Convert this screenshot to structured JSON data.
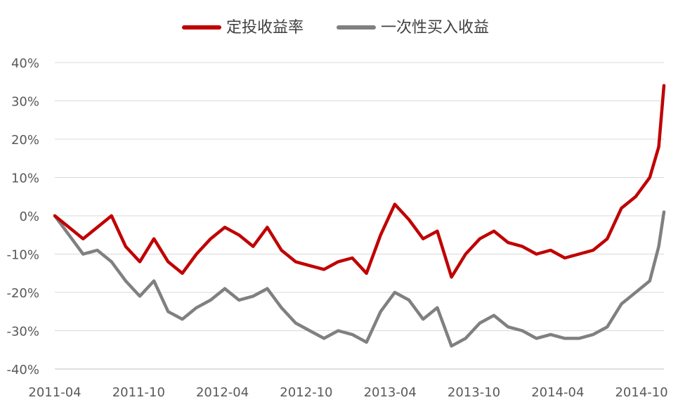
{
  "chart_data": {
    "type": "line",
    "title": "",
    "xlabel": "",
    "ylabel": "",
    "ylim": [
      -40,
      40
    ],
    "yticks": [
      -40,
      -30,
      -20,
      -10,
      0,
      10,
      20,
      30,
      40
    ],
    "ytick_labels": [
      "-40%",
      "-30%",
      "-20%",
      "-10%",
      "0%",
      "10%",
      "20%",
      "30%",
      "40%"
    ],
    "xtick_labels": [
      "2011-04",
      "2011-10",
      "2012-04",
      "2012-10",
      "2013-04",
      "2013-10",
      "2014-04",
      "2014-10"
    ],
    "x_start": "2011-04",
    "x_end": "2014-11",
    "grid": true,
    "legend_position": "top-center",
    "series": [
      {
        "name": "定投收益率",
        "color": "#C00000",
        "points": [
          [
            "2011-04",
            0
          ],
          [
            "2011-05",
            -3
          ],
          [
            "2011-06",
            -6
          ],
          [
            "2011-07",
            -3
          ],
          [
            "2011-08",
            0
          ],
          [
            "2011-09",
            -8
          ],
          [
            "2011-10",
            -12
          ],
          [
            "2011-11",
            -6
          ],
          [
            "2011-12",
            -12
          ],
          [
            "2012-01",
            -15
          ],
          [
            "2012-02",
            -10
          ],
          [
            "2012-03",
            -6
          ],
          [
            "2012-04",
            -3
          ],
          [
            "2012-05",
            -5
          ],
          [
            "2012-06",
            -8
          ],
          [
            "2012-07",
            -3
          ],
          [
            "2012-08",
            -9
          ],
          [
            "2012-09",
            -12
          ],
          [
            "2012-10",
            -13
          ],
          [
            "2012-11",
            -14
          ],
          [
            "2012-12",
            -12
          ],
          [
            "2013-01",
            -11
          ],
          [
            "2013-02",
            -15
          ],
          [
            "2013-03",
            -5
          ],
          [
            "2013-04",
            3
          ],
          [
            "2013-05",
            -1
          ],
          [
            "2013-06",
            -6
          ],
          [
            "2013-07",
            -4
          ],
          [
            "2013-08",
            -16
          ],
          [
            "2013-09",
            -10
          ],
          [
            "2013-10",
            -6
          ],
          [
            "2013-11",
            -4
          ],
          [
            "2013-12",
            -7
          ],
          [
            "2014-01",
            -8
          ],
          [
            "2014-02",
            -10
          ],
          [
            "2014-03",
            -9
          ],
          [
            "2014-04",
            -11
          ],
          [
            "2014-05",
            -10
          ],
          [
            "2014-06",
            -9
          ],
          [
            "2014-07",
            -6
          ],
          [
            "2014-08",
            2
          ],
          [
            "2014-09",
            5
          ],
          [
            "2014-10",
            10
          ],
          [
            "2014-10-20",
            18
          ],
          [
            "2014-11",
            34
          ]
        ]
      },
      {
        "name": "一次性买入收益",
        "color": "#808080",
        "points": [
          [
            "2011-04",
            0
          ],
          [
            "2011-05",
            -5
          ],
          [
            "2011-06",
            -10
          ],
          [
            "2011-07",
            -9
          ],
          [
            "2011-08",
            -12
          ],
          [
            "2011-09",
            -17
          ],
          [
            "2011-10",
            -21
          ],
          [
            "2011-11",
            -17
          ],
          [
            "2011-12",
            -25
          ],
          [
            "2012-01",
            -27
          ],
          [
            "2012-02",
            -24
          ],
          [
            "2012-03",
            -22
          ],
          [
            "2012-04",
            -19
          ],
          [
            "2012-05",
            -22
          ],
          [
            "2012-06",
            -21
          ],
          [
            "2012-07",
            -19
          ],
          [
            "2012-08",
            -24
          ],
          [
            "2012-09",
            -28
          ],
          [
            "2012-10",
            -30
          ],
          [
            "2012-11",
            -32
          ],
          [
            "2012-12",
            -30
          ],
          [
            "2013-01",
            -31
          ],
          [
            "2013-02",
            -33
          ],
          [
            "2013-03",
            -25
          ],
          [
            "2013-04",
            -20
          ],
          [
            "2013-05",
            -22
          ],
          [
            "2013-06",
            -27
          ],
          [
            "2013-07",
            -24
          ],
          [
            "2013-08",
            -34
          ],
          [
            "2013-09",
            -32
          ],
          [
            "2013-10",
            -28
          ],
          [
            "2013-11",
            -26
          ],
          [
            "2013-12",
            -29
          ],
          [
            "2014-01",
            -30
          ],
          [
            "2014-02",
            -32
          ],
          [
            "2014-03",
            -31
          ],
          [
            "2014-04",
            -32
          ],
          [
            "2014-05",
            -32
          ],
          [
            "2014-06",
            -31
          ],
          [
            "2014-07",
            -29
          ],
          [
            "2014-08",
            -23
          ],
          [
            "2014-09",
            -20
          ],
          [
            "2014-10",
            -17
          ],
          [
            "2014-10-20",
            -8
          ],
          [
            "2014-11",
            1
          ]
        ]
      }
    ]
  }
}
